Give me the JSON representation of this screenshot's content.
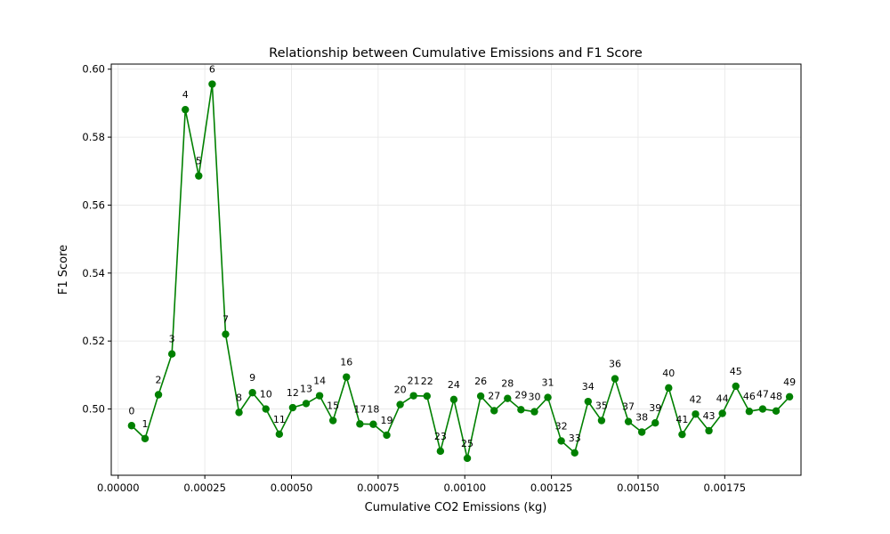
{
  "chart_data": {
    "type": "line",
    "title": "Relationship between Cumulative Emissions and F1 Score",
    "xlabel": "Cumulative CO2 Emissions (kg)",
    "ylabel": "F1 Score",
    "xlim": [
      -2e-05,
      0.00197
    ],
    "ylim": [
      0.4805,
      0.6015
    ],
    "x_ticks": [
      0.0,
      0.00025,
      0.0005,
      0.00075,
      0.001,
      0.00125,
      0.0015,
      0.00175
    ],
    "x_tick_labels": [
      "0.00000",
      "0.00025",
      "0.00050",
      "0.00075",
      "0.00100",
      "0.00125",
      "0.00150",
      "0.00175"
    ],
    "y_ticks": [
      0.5,
      0.52,
      0.54,
      0.56,
      0.58,
      0.6
    ],
    "y_tick_labels": [
      "0.50",
      "0.52",
      "0.54",
      "0.56",
      "0.58",
      "0.60"
    ],
    "grid": true,
    "legend": "none",
    "color": "#008000",
    "series": [
      {
        "labels": [
          "0",
          "1",
          "2",
          "3",
          "4",
          "5",
          "6",
          "7",
          "8",
          "9",
          "10",
          "11",
          "12",
          "13",
          "14",
          "15",
          "16",
          "17",
          "18",
          "19",
          "20",
          "21",
          "22",
          "23",
          "24",
          "25",
          "26",
          "27",
          "28",
          "29",
          "30",
          "31",
          "32",
          "33",
          "34",
          "35",
          "36",
          "37",
          "38",
          "39",
          "40",
          "41",
          "42",
          "43",
          "44",
          "45",
          "46",
          "47",
          "48",
          "49"
        ],
        "x": [
          3.87e-05,
          7.75e-05,
          0.0001162,
          0.000155,
          0.0001937,
          0.0002324,
          0.0002712,
          0.0003099,
          0.0003486,
          0.0003874,
          0.0004261,
          0.0004649,
          0.0005036,
          0.0005423,
          0.0005811,
          0.0006198,
          0.0006585,
          0.0006973,
          0.000736,
          0.0007748,
          0.0008135,
          0.0008522,
          0.000891,
          0.0009297,
          0.0009684,
          0.0010072,
          0.0010459,
          0.0010847,
          0.0011234,
          0.0011621,
          0.0012009,
          0.0012396,
          0.0012783,
          0.0013171,
          0.0013558,
          0.0013946,
          0.0014333,
          0.001472,
          0.0015108,
          0.0015495,
          0.0015882,
          0.001627,
          0.0016657,
          0.0017044,
          0.0017432,
          0.0017819,
          0.0018207,
          0.0018594,
          0.0018981,
          0.0019369
        ],
        "y": [
          0.4951,
          0.4913,
          0.5042,
          0.5162,
          0.5881,
          0.5686,
          0.5956,
          0.522,
          0.499,
          0.5048,
          0.5,
          0.4926,
          0.5004,
          0.5016,
          0.5039,
          0.4966,
          0.5094,
          0.4956,
          0.4955,
          0.4923,
          0.5013,
          0.5039,
          0.5038,
          0.4876,
          0.5028,
          0.4855,
          0.5038,
          0.4995,
          0.5031,
          0.4998,
          0.4992,
          0.5034,
          0.4906,
          0.4871,
          0.5022,
          0.4966,
          0.5089,
          0.4963,
          0.4932,
          0.4959,
          0.5062,
          0.4925,
          0.4985,
          0.4936,
          0.4987,
          0.5067,
          0.4993,
          0.5,
          0.4994,
          0.5036
        ]
      }
    ]
  }
}
